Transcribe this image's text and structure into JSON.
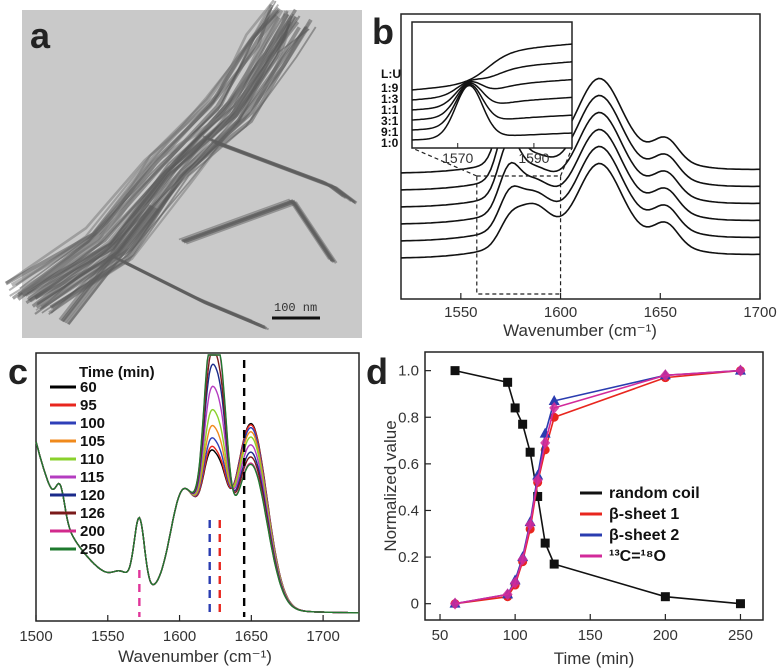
{
  "panel_labels": {
    "a": "a",
    "b": "b",
    "c": "c",
    "d": "d"
  },
  "panel_a": {
    "scale_bar_label": "100 nm"
  },
  "chart_data": [
    {
      "panel": "b",
      "type": "line",
      "xlabel": "Wavenumber (cm⁻¹)",
      "xlim": [
        1520,
        1700
      ],
      "xticks": [
        1550,
        1600,
        1650,
        1700
      ],
      "dashed_box_x": [
        1558,
        1600
      ],
      "inset": {
        "title": "L:U",
        "labels": [
          "1:9",
          "1:3",
          "1:1",
          "3:1",
          "9:1",
          "1:0"
        ],
        "xticks": [
          1570,
          1590
        ],
        "xlim": [
          1558,
          1600
        ]
      },
      "series_ratio_labels": [
        "1:9",
        "1:3",
        "1:1",
        "3:1",
        "9:1",
        "1:0"
      ]
    },
    {
      "panel": "c",
      "type": "line",
      "xlabel": "Wavenumber (cm⁻¹)",
      "xlim": [
        1500,
        1725
      ],
      "xticks": [
        1500,
        1550,
        1600,
        1650,
        1700
      ],
      "legend_title": "Time (min)",
      "series": [
        {
          "name": "60",
          "color": "#000000",
          "t": 0.0
        },
        {
          "name": "95",
          "color": "#e8261e",
          "t": 0.03
        },
        {
          "name": "100",
          "color": "#2f3fb8",
          "t": 0.1
        },
        {
          "name": "105",
          "color": "#f08a1c",
          "t": 0.2
        },
        {
          "name": "110",
          "color": "#8ad12c",
          "t": 0.33
        },
        {
          "name": "115",
          "color": "#b43cc0",
          "t": 0.52
        },
        {
          "name": "120",
          "color": "#1a2a8a",
          "t": 0.7
        },
        {
          "name": "126",
          "color": "#7a1a1a",
          "t": 0.82
        },
        {
          "name": "200",
          "color": "#d22a8c",
          "t": 0.97
        },
        {
          "name": "250",
          "color": "#1e7a2e",
          "t": 1.0
        }
      ],
      "dashed_markers": [
        {
          "x": 1572,
          "color": "#e0359a"
        },
        {
          "x": 1621,
          "color": "#2a3cb0"
        },
        {
          "x": 1628,
          "color": "#e8261e"
        },
        {
          "x": 1645,
          "color": "#000000"
        }
      ]
    },
    {
      "panel": "d",
      "type": "line",
      "xlabel": "Time (min)",
      "ylabel": "Normalized value",
      "xlim": [
        40,
        265
      ],
      "ylim": [
        -0.07,
        1.08
      ],
      "xticks": [
        50,
        100,
        150,
        200,
        250
      ],
      "yticks": [
        0,
        0.2,
        0.4,
        0.6,
        0.8,
        1.0
      ],
      "ytick_labels": [
        "0",
        "0.2",
        "0.4",
        "0.6",
        "0.8",
        "1.0"
      ],
      "legend_placement": "center-right",
      "x": [
        60,
        95,
        100,
        105,
        110,
        115,
        120,
        126,
        200,
        250
      ],
      "series": [
        {
          "name": "random coil",
          "color": "#111111",
          "marker": "square",
          "values": [
            1.0,
            0.95,
            0.84,
            0.77,
            0.65,
            0.46,
            0.26,
            0.17,
            0.03,
            0.0
          ]
        },
        {
          "name": "β-sheet 1",
          "color": "#e8261e",
          "marker": "circle",
          "values": [
            0.0,
            0.03,
            0.08,
            0.18,
            0.32,
            0.52,
            0.66,
            0.8,
            0.97,
            1.0
          ]
        },
        {
          "name": "β-sheet 2",
          "color": "#2a3cb0",
          "marker": "triangle",
          "values": [
            0.0,
            0.04,
            0.1,
            0.2,
            0.35,
            0.55,
            0.73,
            0.87,
            0.98,
            1.0
          ]
        },
        {
          "name": "¹³C=¹⁸O",
          "color": "#d22a9a",
          "marker": "diamond",
          "values": [
            0.0,
            0.04,
            0.09,
            0.19,
            0.34,
            0.53,
            0.69,
            0.84,
            0.98,
            1.0
          ]
        }
      ]
    }
  ]
}
